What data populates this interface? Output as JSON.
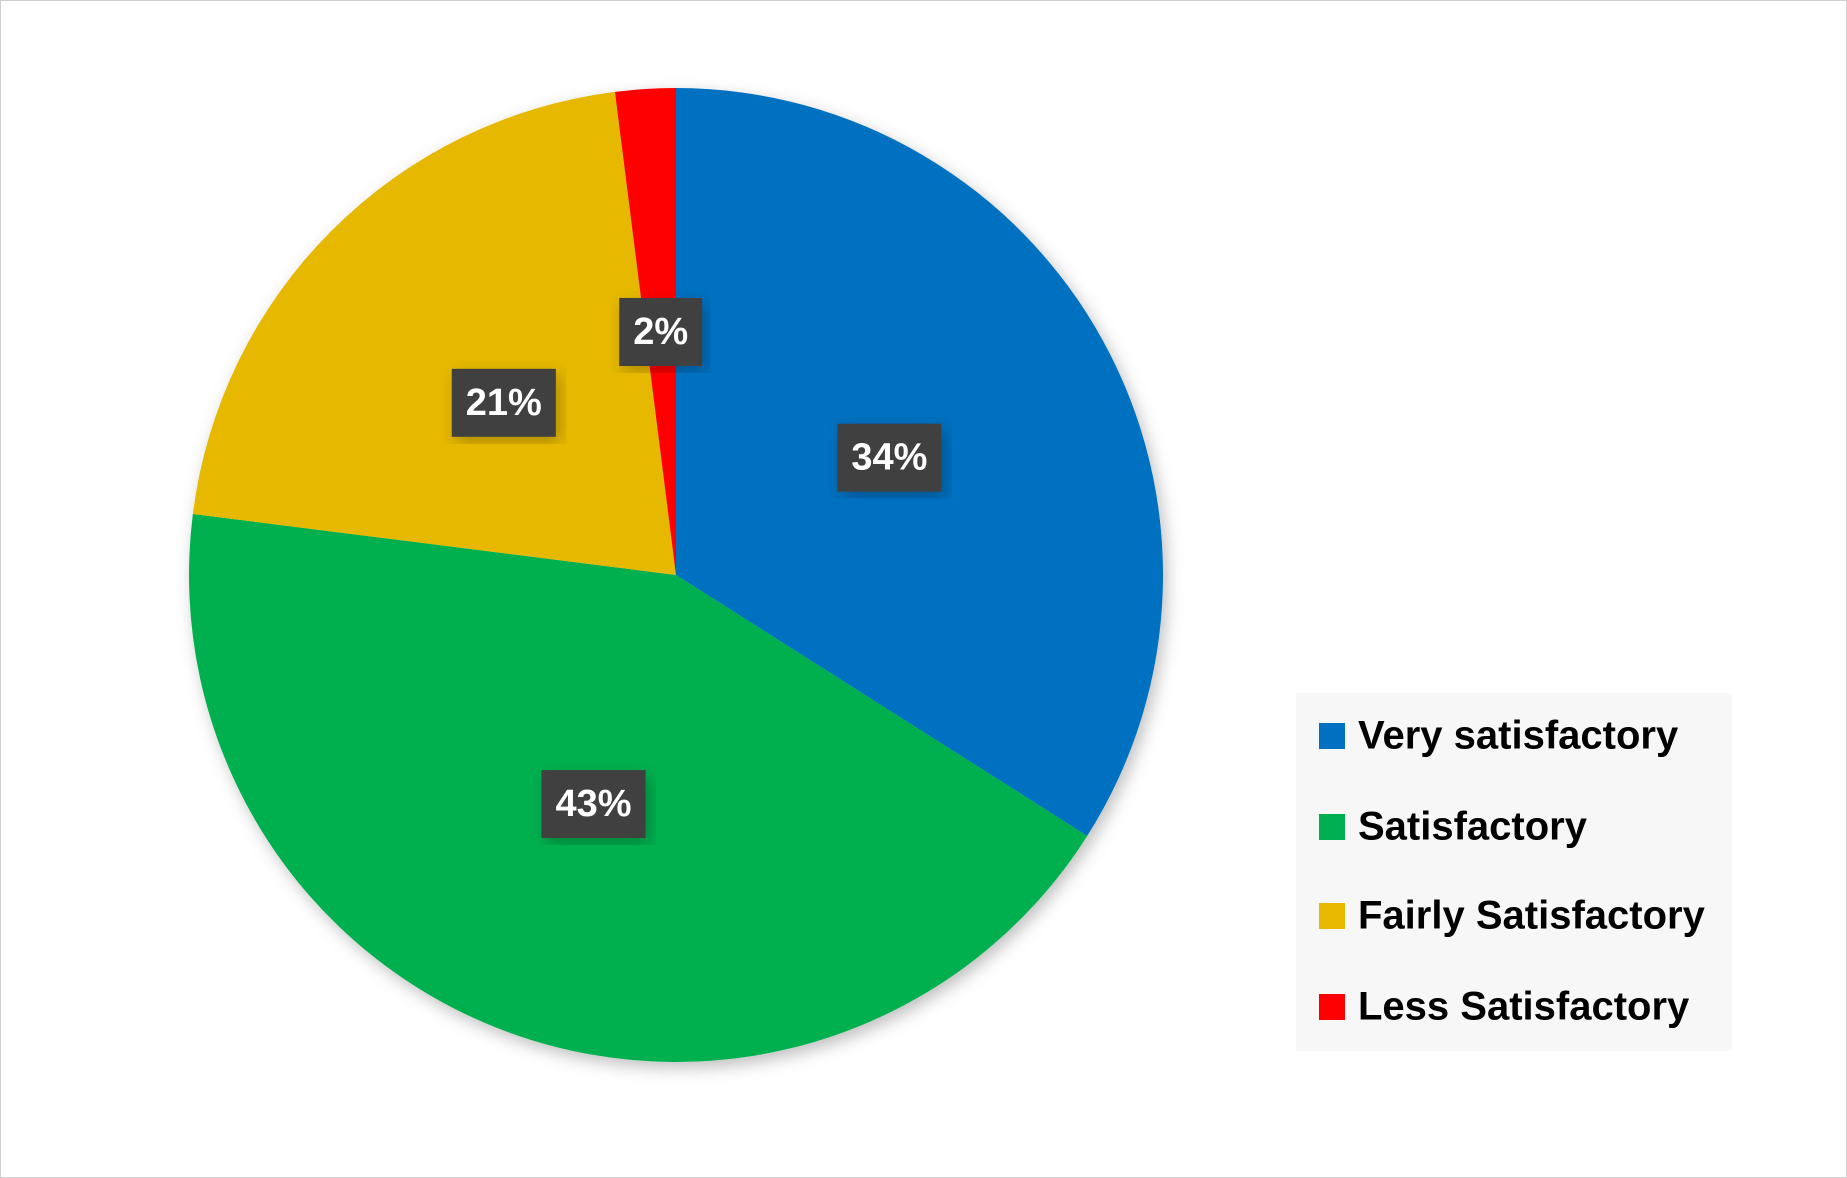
{
  "chart_data": {
    "type": "pie",
    "categories": [
      "Very satisfactory",
      "Satisfactory",
      "Fairly Satisfactory",
      "Less Satisfactory"
    ],
    "values": [
      34,
      43,
      21,
      2
    ],
    "value_labels": [
      "34%",
      "43%",
      "21%",
      "2%"
    ],
    "colors": [
      "#0070c0",
      "#00b050",
      "#e6b800",
      "#ff0000"
    ],
    "legend": "right"
  }
}
